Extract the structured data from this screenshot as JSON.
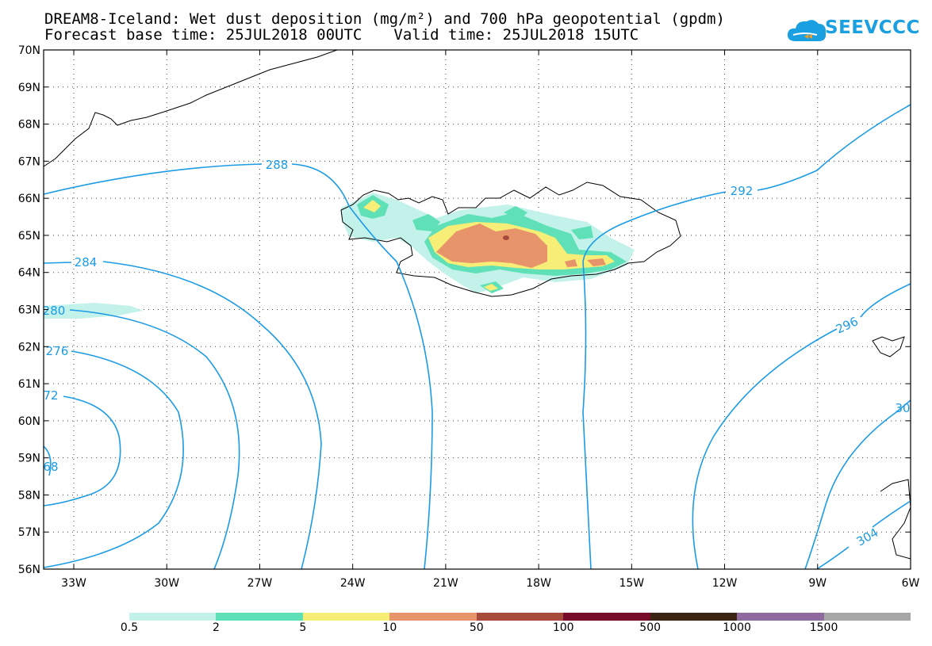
{
  "title": {
    "line1": "DREAM8-Iceland: Wet dust deposition (mg/m²) and 700 hPa geopotential (gpdm)",
    "base_time": "Forecast base time: 25JUL2018 00UTC",
    "valid_time": "Valid time: 25JUL2018 15UTC"
  },
  "logo": {
    "text": "SEEVCCC",
    "color": "#1a9fe0"
  },
  "map": {
    "lat_labels": [
      "70N",
      "69N",
      "68N",
      "67N",
      "66N",
      "65N",
      "64N",
      "63N",
      "62N",
      "61N",
      "60N",
      "59N",
      "58N",
      "57N",
      "56N"
    ],
    "lon_labels": [
      "33W",
      "30W",
      "27W",
      "24W",
      "21W",
      "18W",
      "15W",
      "12W",
      "9W",
      "6W"
    ],
    "contour_color": "#1b9be6",
    "contours": [
      {
        "label": "288"
      },
      {
        "label": "292"
      },
      {
        "label": "284"
      },
      {
        "label": "280"
      },
      {
        "label": "276"
      },
      {
        "label": "72"
      },
      {
        "label": "68"
      },
      {
        "label": "296"
      },
      {
        "label": "30"
      },
      {
        "label": "304"
      }
    ]
  },
  "colorbar": {
    "colors": [
      "#c3f2eb",
      "#5fe0b6",
      "#f7ee78",
      "#e8946a",
      "#a64a3c",
      "#780b2a",
      "#3c2412",
      "#8f6a9f",
      "#a6a6a6"
    ],
    "labels": [
      "0.5",
      "2",
      "5",
      "10",
      "50",
      "100",
      "500",
      "1000",
      "1500"
    ]
  }
}
